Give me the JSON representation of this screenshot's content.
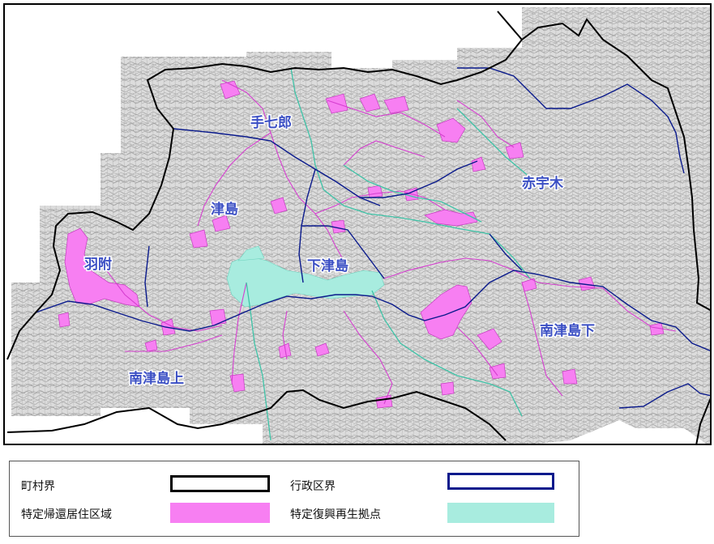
{
  "map": {
    "region_labels": [
      "手七郎",
      "赤宇木",
      "津島",
      "羽附",
      "下津島",
      "南津島下",
      "南津島上"
    ],
    "colors": {
      "municipal_boundary": "#000000",
      "admin_district_boundary": "#0a1a8c",
      "reconstruction_residential": "#f77ff2",
      "reconstruction_base": "#a8ecdf",
      "road_cyan": "#3fc3a7",
      "road_magenta": "#d63fd0",
      "label": "#3b4fc4"
    }
  },
  "legend": {
    "items": [
      {
        "label": "町村界",
        "swatch": "outline-black"
      },
      {
        "label": "行政区界",
        "swatch": "outline-navy"
      },
      {
        "label": "特定帰還居住区域",
        "swatch": "fill-magenta"
      },
      {
        "label": "特定復興再生拠点",
        "swatch": "fill-aqua"
      }
    ]
  }
}
